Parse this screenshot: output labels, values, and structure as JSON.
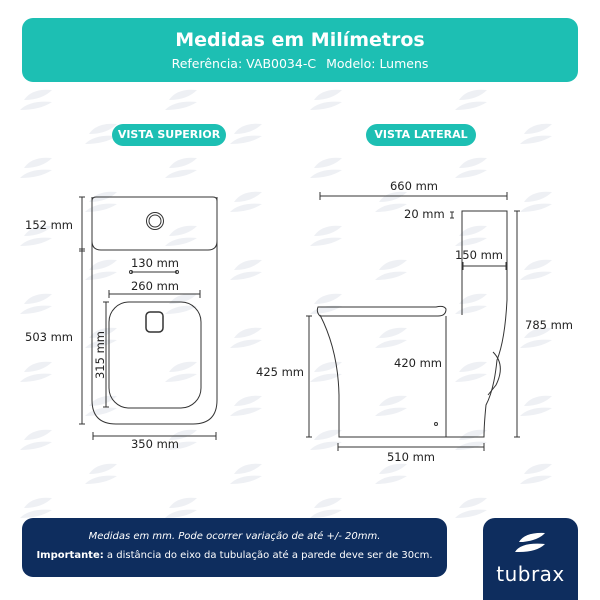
{
  "header": {
    "title": "Medidas em Milímetros",
    "reference": "Referência: VAB0034-C",
    "model": "Modelo: Lumens"
  },
  "views": {
    "top": "VISTA SUPERIOR",
    "side": "VISTA LATERAL"
  },
  "top_view": {
    "tank_depth": "152 mm",
    "bowl_depth": "503 mm",
    "flush_spacing": "130 mm",
    "seat_width": "260 mm",
    "seat_length": "315 mm",
    "total_width": "350 mm"
  },
  "side_view": {
    "total_length": "660 mm",
    "lid_thickness": "20 mm",
    "tank_depth": "150 mm",
    "total_height": "785 mm",
    "seat_height": "425 mm",
    "rim_height": "420 mm",
    "base_length": "510 mm"
  },
  "footer": {
    "note": "Medidas em mm. Pode ocorrer variação de até +/- 20mm.",
    "important_label": "Importante:",
    "important_text": " a distância do eixo da tubulação até a parede deve ser de 30cm."
  },
  "brand": {
    "name": "tubrax",
    "watermark": "tubrax"
  },
  "colors": {
    "teal": "#1dbfb3",
    "navy": "#0e2d5e"
  }
}
